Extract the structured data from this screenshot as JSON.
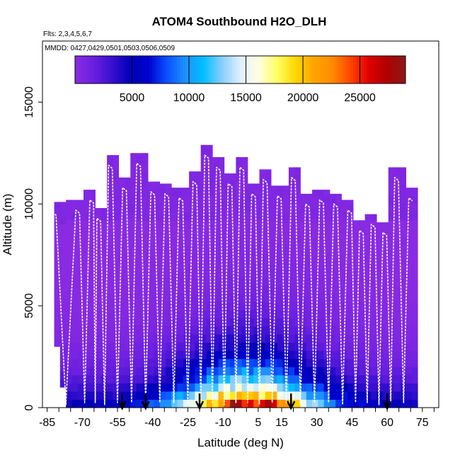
{
  "chart_data": {
    "type": "heatmap",
    "title": "ATOM4 Southbound H2O_DLH",
    "flights_label": "Flts: 2,3,4,5,6,7",
    "mmdd_label": "MMDD: 0427,0429,0501,0503,0506,0509",
    "xlabel": "Latitude (deg N)",
    "ylabel": "Altitude (m)",
    "xlim": [
      -87,
      82
    ],
    "ylim": [
      0,
      18000
    ],
    "x_ticks": [
      -85,
      -70,
      -55,
      -40,
      -25,
      -10,
      5,
      15,
      30,
      45,
      60,
      75
    ],
    "x_tick_labels": [
      "-85",
      "-70",
      "-55",
      "-40",
      "-25",
      "-10",
      "5",
      "15",
      "30",
      "45",
      "60",
      "75"
    ],
    "y_ticks": [
      0,
      5000,
      10000,
      15000
    ],
    "y_tick_labels": [
      "0",
      "5000",
      "10000",
      "15000"
    ],
    "colorbar": {
      "min": 0,
      "max": 29000,
      "ticks": [
        5000,
        10000,
        15000,
        20000,
        25000
      ],
      "tick_labels": [
        "5000",
        "10000",
        "15000",
        "20000",
        "25000"
      ],
      "colors": [
        "#8a2be2",
        "#6a1fe0",
        "#3a10d0",
        "#0000b8",
        "#0000cd",
        "#0a50ff",
        "#1e90ff",
        "#00bfff",
        "#87cefa",
        "#e0f0ff",
        "#ffffe0",
        "#ffff66",
        "#ffd700",
        "#ffa500",
        "#ff8c00",
        "#ff4500",
        "#e00000",
        "#b00000",
        "#8b1a1a"
      ]
    },
    "profile_tops": [
      {
        "lat": -82,
        "alt": 9600
      },
      {
        "lat": -72,
        "alt": 9700
      },
      {
        "lat": -66,
        "alt": 10200
      },
      {
        "lat": -63,
        "alt": 9300
      },
      {
        "lat": -58,
        "alt": 11900
      },
      {
        "lat": -52,
        "alt": 10800
      },
      {
        "lat": -46,
        "alt": 12000
      },
      {
        "lat": -40,
        "alt": 10600
      },
      {
        "lat": -34,
        "alt": 10500
      },
      {
        "lat": -28,
        "alt": 10300
      },
      {
        "lat": -22,
        "alt": 11100
      },
      {
        "lat": -17,
        "alt": 12400
      },
      {
        "lat": -12,
        "alt": 11800
      },
      {
        "lat": -7,
        "alt": 11000
      },
      {
        "lat": -2,
        "alt": 11800
      },
      {
        "lat": 3,
        "alt": 10500
      },
      {
        "lat": 8,
        "alt": 11200
      },
      {
        "lat": 14,
        "alt": 10400
      },
      {
        "lat": 20,
        "alt": 11300
      },
      {
        "lat": 26,
        "alt": 10000
      },
      {
        "lat": 32,
        "alt": 10200
      },
      {
        "lat": 38,
        "alt": 10000
      },
      {
        "lat": 44,
        "alt": 9700
      },
      {
        "lat": 49,
        "alt": 8700
      },
      {
        "lat": 54,
        "alt": 9000
      },
      {
        "lat": 59,
        "alt": 8600
      },
      {
        "lat": 64,
        "alt": 11300
      },
      {
        "lat": 70,
        "alt": 10300
      }
    ],
    "arrows_lat": [
      -53,
      -43,
      -20,
      19,
      60
    ]
  }
}
